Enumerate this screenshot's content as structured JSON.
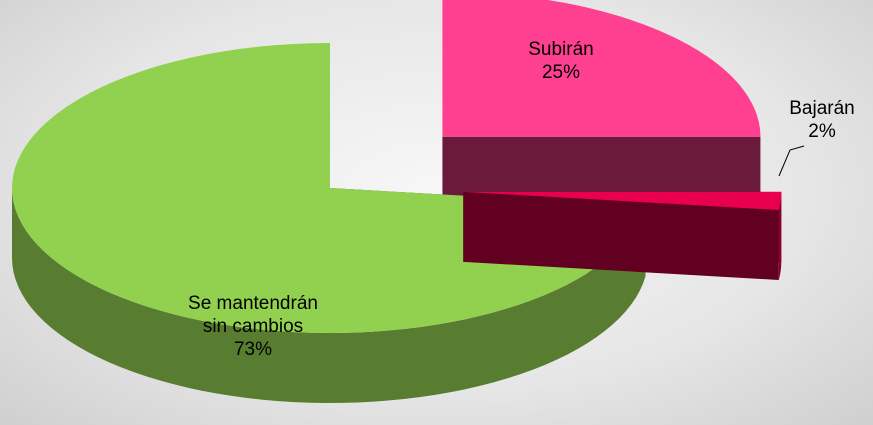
{
  "chart_data": {
    "type": "pie",
    "categories": [
      "Subirán",
      "Bajarán",
      "Se mantendrán sin cambios"
    ],
    "values": [
      25,
      2,
      73
    ],
    "value_labels": [
      "25%",
      "2%",
      "73%"
    ],
    "colors": [
      "#ff3f8f",
      "#e8004e",
      "#92d050"
    ],
    "explode": [
      0.5,
      0.42,
      0
    ]
  }
}
